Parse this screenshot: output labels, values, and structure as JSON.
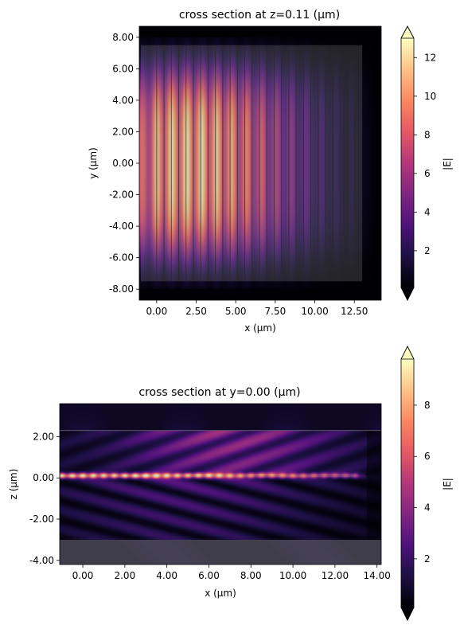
{
  "colors": {
    "magma": [
      "#000004",
      "#1c1044",
      "#4f127b",
      "#812581",
      "#b5367a",
      "#e55964",
      "#fb8761",
      "#fec287",
      "#fcfdbf"
    ],
    "overlay": "#808080"
  },
  "chart_data": [
    {
      "type": "heatmap",
      "title": "cross section at z=0.11 (μm)",
      "xlabel": "x (μm)",
      "ylabel": "y (μm)",
      "xlim": [
        -1.1,
        14.2
      ],
      "ylim": [
        -8.7,
        8.7
      ],
      "xticks": [
        0.0,
        2.5,
        5.0,
        7.5,
        10.0,
        12.5
      ],
      "xtick_labels": [
        "0.00",
        "2.50",
        "5.00",
        "7.50",
        "10.00",
        "12.50"
      ],
      "yticks": [
        8,
        6,
        4,
        2,
        0,
        -2,
        -4,
        -6,
        -8
      ],
      "ytick_labels": [
        "8.00",
        "6.00",
        "4.00",
        "2.00",
        "0.00",
        "-2.00",
        "-4.00",
        "-6.00",
        "-8.00"
      ],
      "colorbar": {
        "label": "|E|",
        "range": [
          0.1,
          13.0
        ],
        "ticks": [
          2,
          4,
          6,
          8,
          10,
          12
        ],
        "tick_labels": [
          "2",
          "4",
          "6",
          "8",
          "10",
          "12"
        ],
        "extend": "both",
        "colormap": "magma"
      },
      "structure": {
        "grating_x": [
          -1.0,
          13.0
        ],
        "grating_y": [
          -7.5,
          7.5
        ],
        "trench_count": 28
      },
      "field": {
        "peak_value": 12.8,
        "peak_x": 2.0,
        "peak_y": 0.0,
        "decay_x_end": 14.0
      }
    },
    {
      "type": "heatmap",
      "title": "cross section at y=0.00 (μm)",
      "xlabel": "x (μm)",
      "ylabel": "z (μm)",
      "xlim": [
        -1.1,
        14.2
      ],
      "ylim": [
        -4.2,
        3.6
      ],
      "xticks": [
        0,
        2,
        4,
        6,
        8,
        10,
        12,
        14
      ],
      "xtick_labels": [
        "0.00",
        "2.00",
        "4.00",
        "6.00",
        "8.00",
        "10.00",
        "12.00",
        "14.00"
      ],
      "yticks": [
        2,
        0,
        -2,
        -4
      ],
      "ytick_labels": [
        "2.00",
        "0.00",
        "-2.00",
        "-4.00"
      ],
      "colorbar": {
        "label": "|E|",
        "range": [
          0.1,
          9.8
        ],
        "ticks": [
          2,
          4,
          6,
          8
        ],
        "tick_labels": [
          "2",
          "4",
          "6",
          "8"
        ],
        "extend": "both",
        "colormap": "magma"
      },
      "structure": {
        "waveguide_z": 0.11,
        "cladding_top_z": 2.3,
        "substrate_top_z": -3.0,
        "grating_end_x": 13.0
      },
      "field": {
        "peak_value": 9.5,
        "peak_z": 0.11
      }
    }
  ]
}
